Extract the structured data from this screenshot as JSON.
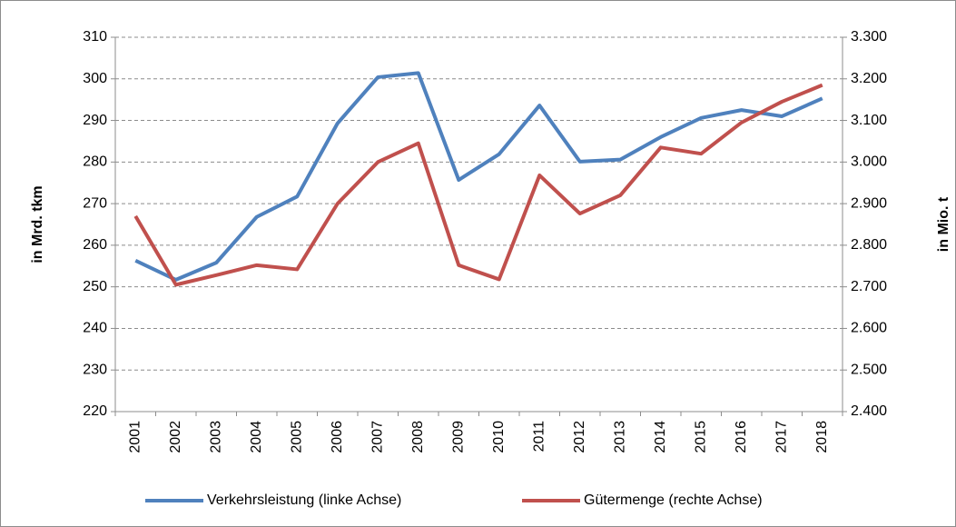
{
  "chart_data": {
    "type": "line",
    "categories": [
      "2001",
      "2002",
      "2003",
      "2004",
      "2005",
      "2006",
      "2007",
      "2008",
      "2009",
      "2010",
      "2011",
      "2012",
      "2013",
      "2014",
      "2015",
      "2016",
      "2017",
      "2018"
    ],
    "series": [
      {
        "name": "Verkehrsleistung (linke Achse)",
        "color": "#4f81bd",
        "axis": "y",
        "values": [
          256.3,
          251.7,
          255.8,
          266.8,
          271.7,
          289.3,
          300.4,
          301.4,
          275.7,
          281.9,
          293.6,
          280.1,
          280.6,
          286.0,
          290.6,
          292.5,
          291.0,
          295.3
        ]
      },
      {
        "name": "Gütermenge (rechte Achse)",
        "color": "#c0504d",
        "axis": "y2",
        "values": [
          2870,
          2705,
          2728,
          2752,
          2742,
          2900,
          3000,
          3045,
          2752,
          2718,
          2968,
          2876,
          2920,
          3035,
          3020,
          3095,
          3145,
          3185
        ]
      }
    ],
    "ylabel": "in Mrd. tkm",
    "y2label": "in Mio. t",
    "ylim": [
      220,
      310
    ],
    "yticks": [
      220,
      230,
      240,
      250,
      260,
      270,
      280,
      290,
      300,
      310
    ],
    "y2lim": [
      2400,
      3300
    ],
    "y2ticks": [
      {
        "value": 2400,
        "label": "2.400"
      },
      {
        "value": 2500,
        "label": "2.500"
      },
      {
        "value": 2600,
        "label": "2.600"
      },
      {
        "value": 2700,
        "label": "2.700"
      },
      {
        "value": 2800,
        "label": "2.800"
      },
      {
        "value": 2900,
        "label": "2.900"
      },
      {
        "value": 3000,
        "label": "3.000"
      },
      {
        "value": 3100,
        "label": "3.100"
      },
      {
        "value": 3200,
        "label": "3.200"
      },
      {
        "value": 3300,
        "label": "3.300"
      }
    ],
    "grid": true,
    "legend": "bottom"
  }
}
